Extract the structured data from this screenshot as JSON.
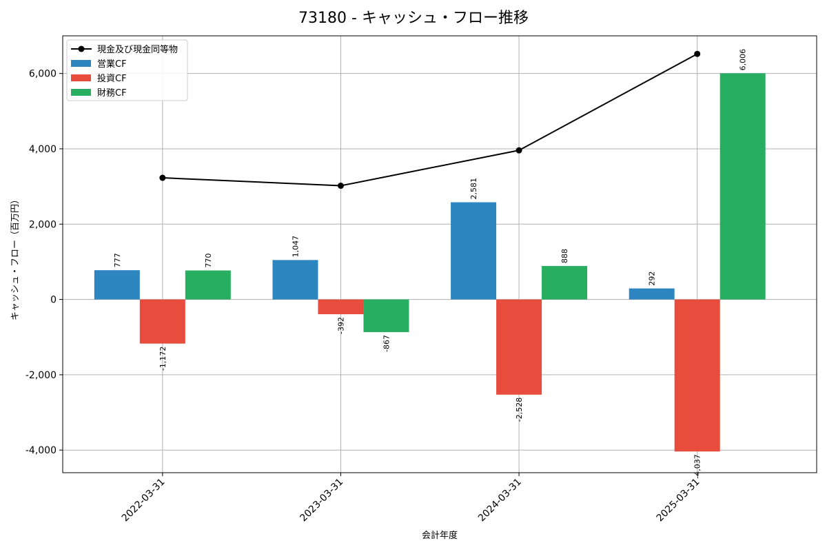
{
  "chart_data": {
    "type": "bar",
    "title": "73180 - キャッシュ・フロー推移",
    "xlabel": "会計年度",
    "ylabel": "キャッシュ・フロー（百万円）",
    "categories": [
      "2022-03-31",
      "2023-03-31",
      "2024-03-31",
      "2025-03-31"
    ],
    "ylim": [
      -4600,
      7000
    ],
    "yticks": [
      -4000,
      -2000,
      0,
      2000,
      4000,
      6000
    ],
    "ytick_labels": [
      "-4,000",
      "-2,000",
      "0",
      "2,000",
      "4,000",
      "6,000"
    ],
    "grid": true,
    "legend_position": "top-left",
    "series": [
      {
        "name": "営業CF",
        "kind": "bar",
        "color": "#2e86c1",
        "values": [
          777,
          1047,
          2581,
          292
        ],
        "labels": [
          "777",
          "1,047",
          "2,581",
          "292"
        ]
      },
      {
        "name": "投資CF",
        "kind": "bar",
        "color": "#e74c3c",
        "values": [
          -1172,
          -392,
          -2528,
          -4037
        ],
        "labels": [
          "-1,172",
          "-392",
          "-2,528",
          "-4,037"
        ]
      },
      {
        "name": "財務CF",
        "kind": "bar",
        "color": "#27ae60",
        "values": [
          770,
          -867,
          888,
          6006
        ],
        "labels": [
          "770",
          "-867",
          "888",
          "6,006"
        ]
      },
      {
        "name": "現金及び現金同等物",
        "kind": "line",
        "color": "#000000",
        "values": [
          3230,
          3020,
          3960,
          6520
        ]
      }
    ]
  }
}
